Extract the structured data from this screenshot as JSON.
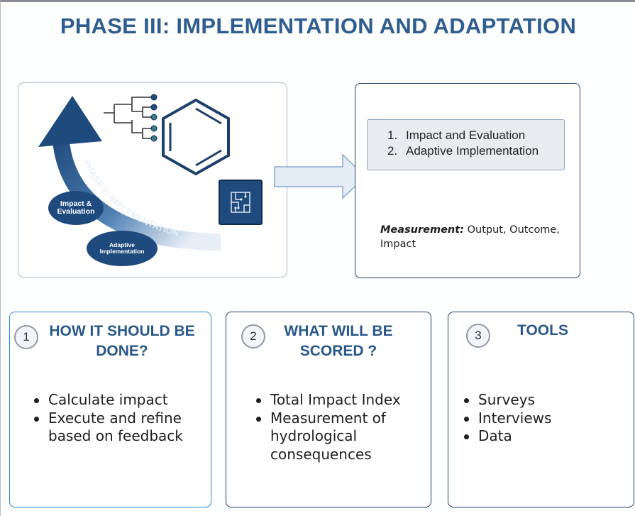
{
  "title": "PHASE III: IMPLEMENTATION AND ADAPTATION",
  "illustration": {
    "arrow_label": "PHASE 3: IMPLEMENTATION",
    "bubble_1": "Impact & Evaluation",
    "bubble_2": "Adaptive Implementation",
    "icons": [
      "upward-arrow-icon",
      "dendrogram-icon",
      "benzene-ring-icon",
      "circuit-chip-icon"
    ]
  },
  "phase_panel": {
    "items": [
      {
        "num": "1.",
        "label": "Impact and Evaluation"
      },
      {
        "num": "2.",
        "label": "Adaptive Implementation"
      }
    ],
    "measurement_label": "Measurement:",
    "measurement_text": " Output, Outcome, Impact"
  },
  "cards": [
    {
      "num": "1",
      "title": "HOW IT SHOULD BE DONE?",
      "bullets": [
        "Calculate impact",
        "Execute and refine based on feedback"
      ]
    },
    {
      "num": "2",
      "title": "WHAT WILL BE SCORED ?",
      "bullets": [
        "Total Impact Index",
        "Measurement of hydrological consequences"
      ]
    },
    {
      "num": "3",
      "title": "TOOLS",
      "bullets": [
        "Surveys",
        "Interviews",
        "Data"
      ]
    }
  ],
  "colors": {
    "accent": "#2f5d8f",
    "dark_blue": "#1f4a7d",
    "panel_fill": "#e8ecef"
  }
}
